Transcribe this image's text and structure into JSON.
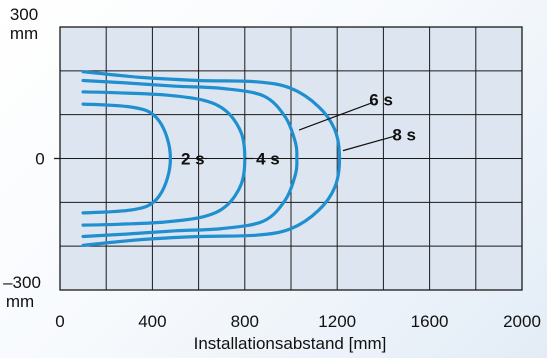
{
  "chart_data": {
    "type": "line",
    "title": "",
    "xlabel": "Installationsabstand [mm]",
    "ylabel": "",
    "xlim": [
      0,
      2000
    ],
    "ylim": [
      -300,
      300
    ],
    "x_ticks": [
      {
        "value": 0,
        "label": "0"
      },
      {
        "value": 400,
        "label": "400"
      },
      {
        "value": 800,
        "label": "800"
      },
      {
        "value": 1200,
        "label": "1200"
      },
      {
        "value": 1600,
        "label": "1600"
      },
      {
        "value": 2000,
        "label": "2000"
      }
    ],
    "y_ticks": [
      {
        "value": 300,
        "label": "300",
        "unit": "mm"
      },
      {
        "value": 0,
        "label": "0",
        "unit": ""
      },
      {
        "value": -300,
        "label": "–300",
        "unit": "mm"
      }
    ],
    "grid": true,
    "grid_step_x": 200,
    "grid_step_y": 100,
    "colors": {
      "plot_background": "#dde5f0",
      "grid": "#1a1a1a",
      "curve": "#1f8fd0",
      "label_leader": "#111111"
    },
    "series": [
      {
        "name": "2 s",
        "points": [
          [
            100,
            -124
          ],
          [
            200,
            -122
          ],
          [
            300,
            -118
          ],
          [
            380,
            -108
          ],
          [
            430,
            -85
          ],
          [
            465,
            -45
          ],
          [
            478,
            0
          ],
          [
            465,
            45
          ],
          [
            430,
            85
          ],
          [
            380,
            108
          ],
          [
            300,
            118
          ],
          [
            200,
            122
          ],
          [
            100,
            124
          ]
        ]
      },
      {
        "name": "4 s",
        "points": [
          [
            100,
            -152
          ],
          [
            250,
            -150
          ],
          [
            450,
            -145
          ],
          [
            620,
            -133
          ],
          [
            720,
            -108
          ],
          [
            785,
            -58
          ],
          [
            800,
            0
          ],
          [
            785,
            58
          ],
          [
            720,
            108
          ],
          [
            620,
            133
          ],
          [
            450,
            145
          ],
          [
            250,
            150
          ],
          [
            100,
            152
          ]
        ]
      },
      {
        "name": "6 s",
        "points": [
          [
            100,
            -178
          ],
          [
            300,
            -172
          ],
          [
            500,
            -165
          ],
          [
            700,
            -160
          ],
          [
            880,
            -143
          ],
          [
            975,
            -95
          ],
          [
            1020,
            -35
          ],
          [
            1025,
            0
          ],
          [
            1020,
            35
          ],
          [
            975,
            95
          ],
          [
            880,
            143
          ],
          [
            700,
            160
          ],
          [
            500,
            165
          ],
          [
            300,
            172
          ],
          [
            100,
            178
          ]
        ]
      },
      {
        "name": "8 s",
        "points": [
          [
            100,
            -198
          ],
          [
            350,
            -185
          ],
          [
            600,
            -178
          ],
          [
            850,
            -175
          ],
          [
            1000,
            -160
          ],
          [
            1120,
            -118
          ],
          [
            1190,
            -65
          ],
          [
            1210,
            0
          ],
          [
            1190,
            65
          ],
          [
            1120,
            118
          ],
          [
            1000,
            160
          ],
          [
            850,
            175
          ],
          [
            600,
            178
          ],
          [
            350,
            185
          ],
          [
            100,
            198
          ]
        ]
      }
    ],
    "annotations": [
      {
        "series": "2 s",
        "text": "2 s",
        "at": [
          575,
          0
        ],
        "leader_to": [
          630,
          0
        ]
      },
      {
        "series": "4 s",
        "text": "4 s",
        "at": [
          900,
          0
        ],
        "leader_to": [
          800,
          0
        ],
        "leader_from": [
          835,
          0
        ]
      },
      {
        "series": "6 s",
        "text": "6 s",
        "at": [
          1390,
          135
        ],
        "leader_from": [
          1355,
          128
        ],
        "leader_to": [
          1035,
          65
        ]
      },
      {
        "series": "8 s",
        "text": "8 s",
        "at": [
          1490,
          55
        ],
        "leader_from": [
          1455,
          52
        ],
        "leader_to": [
          1225,
          18
        ]
      }
    ]
  }
}
